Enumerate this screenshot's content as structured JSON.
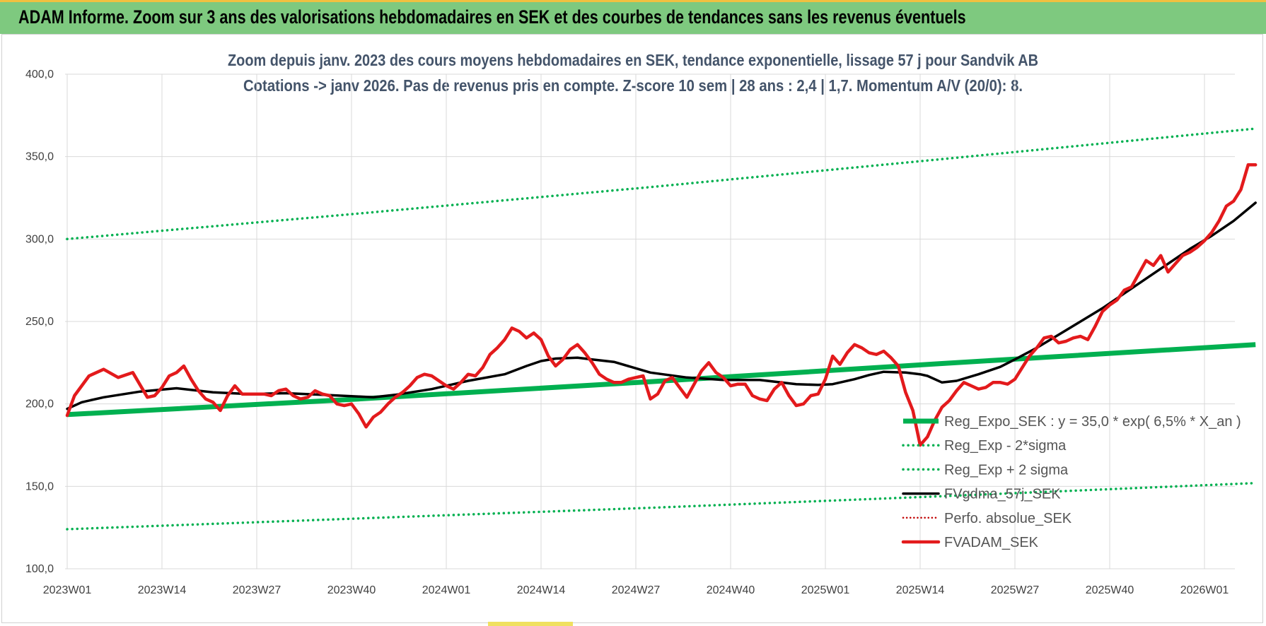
{
  "banner": {
    "title": "ADAM Informe. Zoom sur 3 ans des valorisations hebdomadaires en SEK et des courbes de tendances sans les revenus éventuels"
  },
  "colors": {
    "banner_bg": "#7ec97f",
    "reg_expo": "#00b050",
    "sigma_bands": "#00b050",
    "fvgdma": "#000000",
    "perfo": "#c00000",
    "fvadam": "#e31a1c",
    "grid": "#d9d9d9"
  },
  "chart_data": {
    "type": "line",
    "title_line1": "Zoom depuis janv. 2023 des cours moyens hebdomadaires en SEK, tendance exponentielle, lissage 57 j pour Sandvik AB",
    "title_line2": "Cotations -> janv 2026. Pas de revenus pris en compte. Z-score 10 sem | 28 ans : 2,4 | 1,7. Momentum A/V (20/0): 8.",
    "xlabel": "",
    "ylabel": "",
    "ylim": [
      100,
      400
    ],
    "y_ticks": [
      "100,0",
      "150,0",
      "200,0",
      "250,0",
      "300,0",
      "350,0",
      "400,0"
    ],
    "y_tick_values": [
      100,
      150,
      200,
      250,
      300,
      350,
      400
    ],
    "x_range": [
      0,
      164
    ],
    "x_ticks": [
      "2023W01",
      "2023W14",
      "2023W27",
      "2023W40",
      "2024W01",
      "2024W14",
      "2024W27",
      "2024W40",
      "2025W01",
      "2025W14",
      "2025W27",
      "2025W40",
      "2026W01"
    ],
    "x_tick_positions": [
      0,
      13,
      26,
      39,
      52,
      65,
      78,
      91,
      104,
      117,
      130,
      143,
      156
    ],
    "grid": true,
    "legend_position": "bottom-right",
    "series": [
      {
        "name": "Reg_Expo_SEK : y = 35,0 * exp( 6,5% * X_an )",
        "style": "solid-thick",
        "x": [
          0,
          40,
          80,
          120,
          163
        ],
        "values": [
          193.5,
          203.0,
          213.5,
          224.5,
          236.0
        ]
      },
      {
        "name": "Reg_Exp - 2*sigma",
        "style": "dotted",
        "x": [
          0,
          40,
          80,
          120,
          163
        ],
        "values": [
          124.0,
          130.5,
          137.0,
          144.0,
          152.0
        ]
      },
      {
        "name": "Reg_Exp + 2 sigma",
        "style": "dotted",
        "x": [
          0,
          40,
          80,
          120,
          163
        ],
        "values": [
          300.0,
          315.5,
          331.5,
          348.5,
          367.0
        ]
      },
      {
        "name": "FVgdma_57j_SEK",
        "style": "solid",
        "x": [
          0,
          2,
          5,
          10,
          15,
          20,
          25,
          30,
          35,
          40,
          42,
          45,
          50,
          55,
          60,
          63,
          65,
          67,
          70,
          72,
          75,
          80,
          85,
          90,
          95,
          100,
          103,
          105,
          108,
          110,
          112,
          115,
          117,
          118,
          120,
          122,
          125,
          128,
          130,
          133,
          136,
          139,
          142,
          145,
          148,
          151,
          154,
          157,
          160,
          163
        ],
        "values": [
          197,
          201,
          204,
          207.5,
          209.5,
          207,
          206,
          206.5,
          205.5,
          204.5,
          204,
          205.5,
          209,
          214,
          218,
          223,
          226,
          227.5,
          228,
          227,
          225.5,
          219,
          216,
          214.5,
          214.5,
          212,
          211.5,
          212,
          215,
          217.5,
          219.5,
          219,
          218,
          217,
          213,
          214,
          218,
          222.5,
          227,
          234,
          242,
          250,
          258,
          267,
          276,
          285,
          294,
          302,
          311,
          322
        ]
      },
      {
        "name": "Perfo. absolue_SEK",
        "style": "dotted",
        "x": [],
        "values": []
      },
      {
        "name": "FVADAM_SEK",
        "style": "solid-thick",
        "x": [
          0,
          1,
          3,
          5,
          7,
          9,
          11,
          12,
          13,
          14,
          15,
          16,
          17,
          18,
          19,
          20,
          21,
          22,
          23,
          24,
          26,
          27,
          28,
          29,
          30,
          31,
          32,
          33,
          34,
          35,
          36,
          37,
          38,
          39,
          40,
          41,
          42,
          43,
          44,
          45,
          46,
          47,
          48,
          49,
          50,
          51,
          52,
          53,
          54,
          55,
          56,
          57,
          58,
          59,
          60,
          61,
          62,
          63,
          64,
          65,
          66,
          67,
          68,
          69,
          70,
          71,
          72,
          73,
          74,
          75,
          76,
          77,
          78,
          79,
          80,
          81,
          82,
          83,
          84,
          85,
          86,
          87,
          88,
          89,
          90,
          91,
          92,
          93,
          94,
          95,
          96,
          97,
          98,
          99,
          100,
          101,
          102,
          103,
          104,
          105,
          106,
          107,
          108,
          109,
          110,
          111,
          112,
          113,
          114,
          115,
          116,
          117,
          118,
          119,
          120,
          121,
          122,
          123,
          124,
          125,
          126,
          127,
          128,
          129,
          130,
          131,
          132,
          133,
          134,
          135,
          136,
          137,
          138,
          139,
          140,
          141,
          142,
          143,
          144,
          145,
          146,
          147,
          148,
          149,
          150,
          151,
          152,
          153,
          154,
          155,
          156,
          157,
          158,
          159,
          160,
          161,
          162,
          163
        ],
        "values": [
          193,
          205,
          217,
          221,
          216,
          219,
          204,
          205,
          210,
          217,
          219,
          223,
          215,
          208,
          203,
          201,
          196,
          205,
          211,
          206,
          206,
          206,
          205,
          208,
          209,
          205,
          203,
          204,
          208,
          206,
          205,
          200,
          199,
          200,
          194,
          186,
          192,
          195,
          200,
          204,
          207,
          211,
          216,
          218,
          217,
          214,
          211,
          209,
          213,
          218,
          217,
          222,
          230,
          234,
          239,
          246,
          244,
          240,
          243,
          239,
          229,
          223,
          227,
          233,
          236,
          231,
          225,
          218,
          215,
          213,
          213,
          215,
          216,
          217,
          203,
          206,
          214,
          216,
          210,
          204,
          212,
          220,
          225,
          219,
          216,
          211,
          212,
          212,
          205,
          203,
          202,
          209,
          213,
          205,
          199,
          200,
          205,
          206,
          215,
          229,
          224,
          231,
          236,
          234,
          231,
          230,
          232,
          228,
          223,
          207,
          196,
          175,
          180,
          190,
          198,
          202,
          208,
          213,
          211,
          209,
          210,
          213,
          213,
          212,
          215,
          222,
          229,
          234,
          240,
          241,
          237,
          238,
          240,
          241,
          239,
          247,
          256,
          260,
          263,
          269,
          271,
          279,
          287,
          284,
          290,
          280,
          285,
          290,
          292,
          295,
          299,
          304,
          311,
          320,
          323,
          330,
          345,
          345
        ]
      }
    ]
  }
}
